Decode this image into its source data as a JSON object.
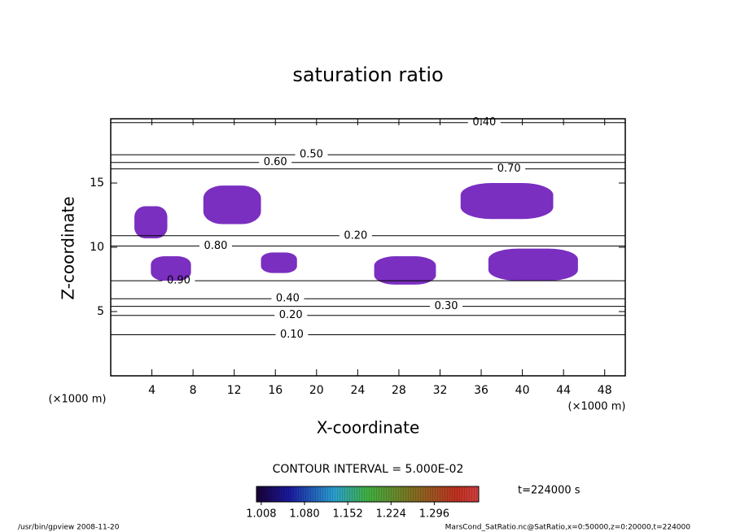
{
  "chart_data": {
    "type": "contour",
    "title": "saturation ratio",
    "x_label": "X-coordinate",
    "y_label": "Z-coordinate",
    "x_unit": "(×1000 m)",
    "y_unit": "(×1000 m)",
    "xlim": [
      0,
      50
    ],
    "ylim": [
      0,
      20
    ],
    "xticks": [
      4,
      8,
      12,
      16,
      20,
      24,
      28,
      32,
      36,
      40,
      44,
      48
    ],
    "yticks": [
      5,
      10,
      15
    ],
    "contour_interval": "CONTOUR INTERVAL = 5.000E-02",
    "contours": [
      {
        "level": {
          "value": 0.4,
          "label": "0.40"
        },
        "x": 36.3,
        "z": 19.7
      },
      {
        "level": {
          "value": 0.5,
          "label": "0.50"
        },
        "x": 19.5,
        "z": 17.2
      },
      {
        "level": {
          "value": 0.6,
          "label": "0.60"
        },
        "x": 16,
        "z": 16.6
      },
      {
        "level": {
          "value": 0.7,
          "label": "0.70"
        },
        "x": 38.7,
        "z": 16.1
      },
      {
        "level": {
          "value": 0.8,
          "label": "0.80"
        },
        "x": 10.2,
        "z": 10.1
      },
      {
        "level": {
          "value": 0.2,
          "label": "0.20"
        },
        "x": 23.8,
        "z": 10.9
      },
      {
        "level": {
          "value": 0.9,
          "label": "0.90"
        },
        "x": 6.6,
        "z": 7.4
      },
      {
        "level": {
          "value": 0.4,
          "label": "0.40"
        },
        "x": 17.2,
        "z": 6.0
      },
      {
        "level": {
          "value": 0.3,
          "label": "0.30"
        },
        "x": 32.6,
        "z": 5.4
      },
      {
        "level": {
          "value": 0.2,
          "label": "0.20"
        },
        "x": 17.5,
        "z": 4.7
      },
      {
        "level": {
          "value": 0.1,
          "label": "0.10"
        },
        "x": 17.6,
        "z": 3.2
      }
    ],
    "shade_color": "#7a2fc0",
    "shaded": [
      {
        "x": [
          2.3,
          5.5
        ],
        "z": [
          10.7,
          13.2
        ]
      },
      {
        "x": [
          3.9,
          7.8
        ],
        "z": [
          7.4,
          9.3
        ]
      },
      {
        "x": [
          9,
          14.6
        ],
        "z": [
          11.8,
          14.8
        ]
      },
      {
        "x": [
          14.6,
          18.1
        ],
        "z": [
          8,
          9.6
        ]
      },
      {
        "x": [
          25.6,
          31.6
        ],
        "z": [
          7.1,
          9.3
        ]
      },
      {
        "x": [
          34,
          43
        ],
        "z": [
          12.2,
          15
        ]
      },
      {
        "x": [
          36.7,
          45.4
        ],
        "z": [
          7.4,
          9.9
        ]
      }
    ],
    "clim": [
      1.0,
      1.37
    ],
    "cticks": [
      {
        "value": 1.008,
        "label": "1.008"
      },
      {
        "value": 1.08,
        "label": "1.080"
      },
      {
        "value": 1.152,
        "label": "1.152"
      },
      {
        "value": 1.224,
        "label": "1.224"
      },
      {
        "value": 1.296,
        "label": "1.296"
      }
    ],
    "time_label": "t=224000 s",
    "footer_left": "/usr/bin/gpview  2008-11-20",
    "footer_right": "MarsCond_SatRatio.nc@SatRatio,x=0:50000,z=0:20000,t=224000"
  }
}
